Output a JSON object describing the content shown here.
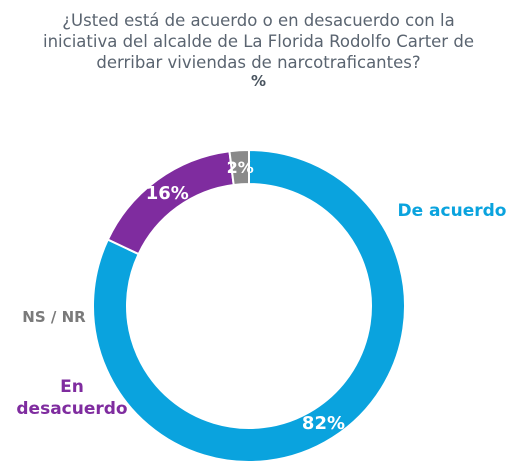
{
  "chart_data": {
    "type": "pie",
    "style": "donut",
    "title": "¿Usted está de acuerdo o en desacuerdo con la iniciativa del alcalde de La Florida Rodolfo Carter de derribar viviendas de narcotraficantes?",
    "title_lines": [
      "¿Usted está de acuerdo o en desacuerdo con la",
      "iniciativa del alcalde de La Florida Rodolfo Carter de",
      "derribar viviendas de narcotraficantes?"
    ],
    "subtitle": "%",
    "slices": [
      {
        "label": "De acuerdo",
        "label_lines": [
          "De acuerdo"
        ],
        "value": 82,
        "value_label": "82%",
        "color": "#0aa3de",
        "label_color": "#0aa3de"
      },
      {
        "label": "En desacuerdo",
        "label_lines": [
          "En",
          "desacuerdo"
        ],
        "value": 16,
        "value_label": "16%",
        "color": "#7f2c9f",
        "label_color": "#7f2c9f"
      },
      {
        "label": "NS / NR",
        "label_lines": [
          "NS / NR"
        ],
        "value": 2,
        "value_label": "2%",
        "color": "#8a8a8a",
        "label_color": "#7a7a7a"
      }
    ]
  }
}
